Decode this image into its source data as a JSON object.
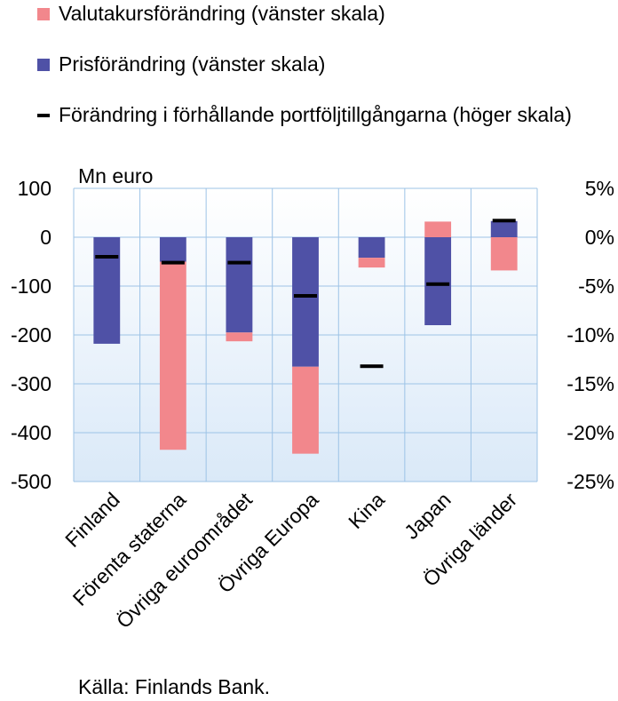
{
  "legend": {
    "fx": "Valutakursförändring (vänster skala)",
    "price": "Prisförändring (vänster skala)",
    "ratio": "Förändring i förhållande portföljtillgångarna (höger skala)"
  },
  "source": "Källa: Finlands Bank.",
  "colors": {
    "fx": "#f2878c",
    "price": "#4f51a6",
    "ratio": "#000000",
    "grid": "#9dc3e6",
    "plot_top": "#ffffff",
    "plot_bottom": "#dae9f8"
  },
  "chart_data": {
    "type": "bar",
    "stacked": true,
    "categories": [
      "Finland",
      "Förenta staterna",
      "Övriga euroområdet",
      "Övriga Europa",
      "Kina",
      "Japan",
      "Övriga länder"
    ],
    "series": [
      {
        "name": "Prisförändring (vänster skala)",
        "axis": "left",
        "values": [
          -218,
          -50,
          -195,
          -265,
          -42,
          -180,
          33
        ]
      },
      {
        "name": "Valutakursförändring (vänster skala)",
        "axis": "left",
        "values": [
          0,
          -385,
          -18,
          -178,
          -20,
          32,
          -68
        ]
      },
      {
        "name": "Förändring i förhållande portföljtillgångarna (höger skala)",
        "axis": "right",
        "type": "marker",
        "values": [
          -2.0,
          -2.6,
          -2.6,
          -6.0,
          -13.2,
          -4.8,
          1.7
        ]
      }
    ],
    "left_axis": {
      "label": "Mn euro",
      "ylim": [
        -500,
        100
      ],
      "ticks": [
        "100",
        "0",
        "-100",
        "-200",
        "-300",
        "-400",
        "-500"
      ]
    },
    "right_axis": {
      "ylim": [
        -25,
        5
      ],
      "ticks": [
        "5%",
        "0%",
        "-5%",
        "-10%",
        "-15%",
        "-20%",
        "-25%"
      ]
    },
    "grid": true,
    "legend_position": "top"
  }
}
